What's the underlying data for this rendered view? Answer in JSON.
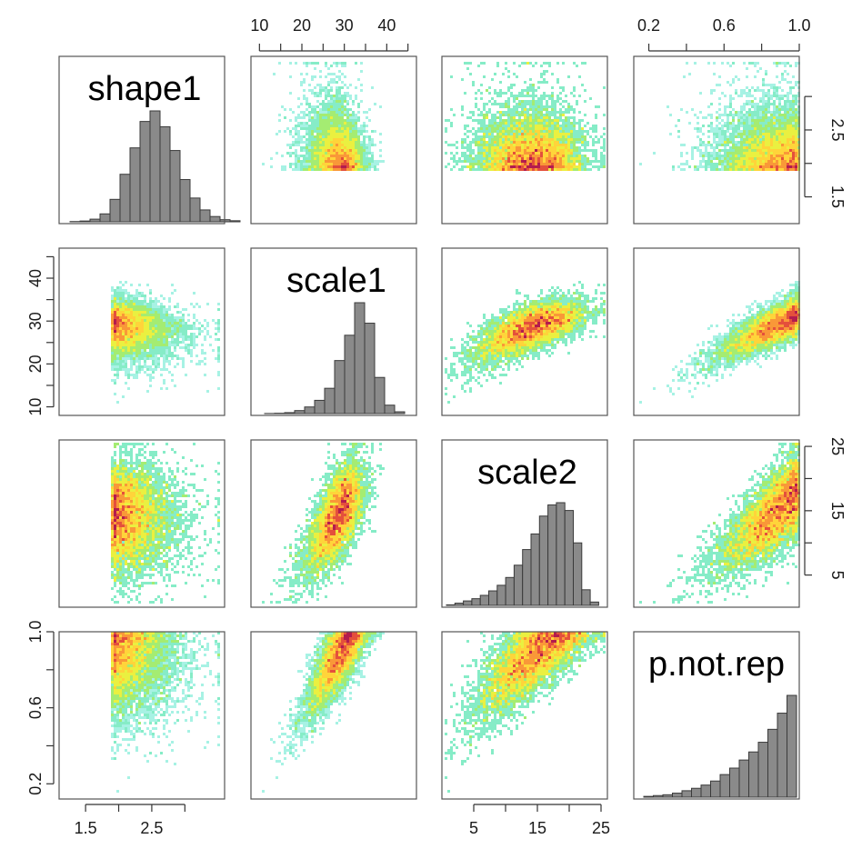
{
  "chart_data": {
    "type": "scatter",
    "variables": [
      "shape1",
      "scale1",
      "scale2",
      "p.not.rep"
    ],
    "diagonal_titles": [
      "shape1",
      "scale1",
      "scale2",
      "p.not.rep"
    ],
    "axis_ticks": {
      "shape1": [
        "1.5",
        "2.5"
      ],
      "shape1_right": [
        "1.5",
        "2.5"
      ],
      "scale1": [
        "10",
        "20",
        "30",
        "40"
      ],
      "scale2": [
        "5",
        "15",
        "25"
      ],
      "p.not.rep": [
        "0.2",
        "0.6",
        "1.0"
      ]
    },
    "ranges": {
      "shape1": [
        1.1,
        3.6
      ],
      "scale1": [
        8,
        47
      ],
      "scale2": [
        0,
        26
      ],
      "p.not.rep": [
        0.12,
        1.0
      ]
    },
    "histograms": {
      "shape1": [
        0.1,
        0.3,
        1,
        3,
        8.5,
        18,
        28,
        38,
        42,
        36,
        27,
        16,
        9,
        4.5,
        2,
        0.8,
        0.4
      ],
      "scale1": [
        0.1,
        0.3,
        0.8,
        2.5,
        5.5,
        11,
        21,
        44,
        65,
        92,
        75,
        30,
        7,
        1.5
      ],
      "scale2": [
        0.5,
        2,
        4,
        6,
        9,
        13,
        18,
        25,
        36,
        50,
        64,
        80,
        90,
        92,
        85,
        56,
        14,
        3
      ],
      "p.not.rep": [
        0.5,
        1,
        1.5,
        2.5,
        4,
        5.5,
        7.5,
        10,
        14,
        18,
        23,
        28,
        34,
        42,
        52,
        63
      ]
    },
    "density_colors": [
      "#a7f2e4",
      "#86ecc7",
      "#a4ec72",
      "#eaf040",
      "#ffd43a",
      "#f99838",
      "#e4503c",
      "#b31c4e"
    ],
    "grid": false,
    "legend": "none"
  }
}
